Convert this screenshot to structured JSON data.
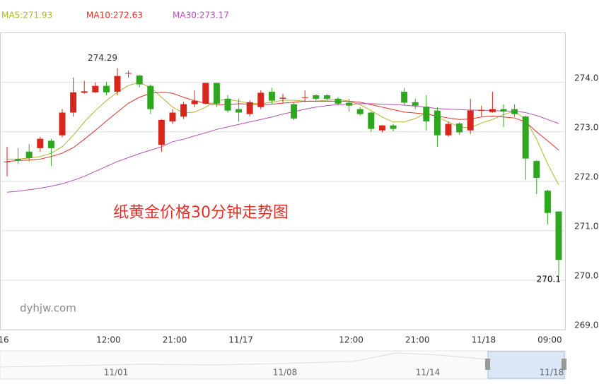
{
  "chart_data": {
    "type": "candlestick",
    "title": "纸黄金价格30分钟走势图",
    "watermark": "dyhjw.com",
    "categories": [
      "16",
      null,
      null,
      null,
      null,
      null,
      null,
      null,
      null,
      "12:00",
      null,
      null,
      null,
      null,
      null,
      "21:00",
      null,
      null,
      null,
      null,
      null,
      "11/17",
      null,
      null,
      null,
      null,
      null,
      null,
      null,
      null,
      null,
      "12:00",
      null,
      null,
      null,
      null,
      null,
      "21:00",
      null,
      null,
      null,
      null,
      null,
      "11/18",
      null,
      null,
      null,
      null,
      null,
      "09:00",
      null
    ],
    "open": [
      272.39,
      272.45,
      272.6,
      272.67,
      272.82,
      272.93,
      273.39,
      273.79,
      273.8,
      273.93,
      273.81,
      274.18,
      274.14,
      273.93,
      272.74,
      273.21,
      273.31,
      273.56,
      273.57,
      273.99,
      273.67,
      273.46,
      273.36,
      273.5,
      273.81,
      273.67,
      273.56,
      273.69,
      273.74,
      273.74,
      273.67,
      273.59,
      273.46,
      273.39,
      273.03,
      273.13,
      273.81,
      273.6,
      273.51,
      273.43,
      272.93,
      273.17,
      273.03,
      273.44,
      273.4,
      273.46,
      273.46,
      273.31,
      272.41,
      271.81,
      271.39
    ],
    "high": [
      272.7,
      272.67,
      272.75,
      272.9,
      272.86,
      273.46,
      274.1,
      274.03,
      274.0,
      274.01,
      274.29,
      274.24,
      274.15,
      273.96,
      273.26,
      273.46,
      273.61,
      273.84,
      273.99,
      273.99,
      273.74,
      273.67,
      273.64,
      273.84,
      273.89,
      273.77,
      273.6,
      273.84,
      273.76,
      273.76,
      273.7,
      273.67,
      273.5,
      273.41,
      273.14,
      273.16,
      273.89,
      273.67,
      273.74,
      273.5,
      273.21,
      273.19,
      273.67,
      273.53,
      273.81,
      273.56,
      273.56,
      273.33,
      272.43,
      271.83,
      271.39
    ],
    "low": [
      272.1,
      272.35,
      272.4,
      272.6,
      272.31,
      272.89,
      273.31,
      273.77,
      273.79,
      273.74,
      273.74,
      274.1,
      273.9,
      273.36,
      272.6,
      273.16,
      273.26,
      273.5,
      273.56,
      273.5,
      273.39,
      273.21,
      273.31,
      273.46,
      273.57,
      273.59,
      273.24,
      273.6,
      273.63,
      273.64,
      273.53,
      273.41,
      273.33,
      273.0,
      272.99,
      273.01,
      273.54,
      273.46,
      273.03,
      272.7,
      272.9,
      272.94,
      272.96,
      273.31,
      273.39,
      273.1,
      273.3,
      272.03,
      271.74,
      271.13,
      270.1
    ],
    "close": [
      272.4,
      272.42,
      272.47,
      272.86,
      272.67,
      273.39,
      273.8,
      273.82,
      273.93,
      273.8,
      274.13,
      274.19,
      273.96,
      273.46,
      273.24,
      273.39,
      273.56,
      273.63,
      273.99,
      273.57,
      273.43,
      273.39,
      273.6,
      273.79,
      273.63,
      273.69,
      273.27,
      273.7,
      273.67,
      273.67,
      273.57,
      273.53,
      273.36,
      273.06,
      273.13,
      273.06,
      273.59,
      273.53,
      273.21,
      272.93,
      273.16,
      272.99,
      273.43,
      273.44,
      273.46,
      273.41,
      273.36,
      272.46,
      272.07,
      271.36,
      270.41
    ],
    "up_color": "#d7261b",
    "down_color": "#2fa61f",
    "ma_series": [
      {
        "name": "MA5:271.93",
        "color": "#b3b32e",
        "values": [
          272.45,
          272.45,
          272.47,
          272.5,
          272.57,
          272.7,
          272.93,
          273.2,
          273.43,
          273.63,
          273.8,
          273.94,
          274.0,
          273.9,
          273.7,
          273.5,
          273.38,
          273.4,
          273.5,
          273.63,
          273.66,
          273.62,
          273.58,
          273.57,
          273.6,
          273.64,
          273.64,
          273.62,
          273.62,
          273.64,
          273.66,
          273.62,
          273.55,
          273.43,
          273.3,
          273.2,
          273.2,
          273.27,
          273.38,
          273.3,
          273.2,
          273.1,
          273.08,
          273.18,
          273.25,
          273.35,
          273.42,
          273.25,
          272.85,
          272.35,
          271.93
        ]
      },
      {
        "name": "MA10:272.63",
        "color": "#e0302a",
        "values": [
          272.4,
          272.42,
          272.43,
          272.45,
          272.5,
          272.57,
          272.68,
          272.85,
          273.03,
          273.22,
          273.4,
          273.58,
          273.7,
          273.78,
          273.8,
          273.78,
          273.7,
          273.63,
          273.58,
          273.55,
          273.55,
          273.57,
          273.56,
          273.55,
          273.56,
          273.58,
          273.6,
          273.62,
          273.62,
          273.62,
          273.62,
          273.62,
          273.6,
          273.55,
          273.5,
          273.45,
          273.4,
          273.38,
          273.36,
          273.32,
          273.28,
          273.25,
          273.26,
          273.3,
          273.32,
          273.3,
          273.28,
          273.2,
          273.0,
          272.82,
          272.63
        ]
      },
      {
        "name": "MA30:273.17",
        "color": "#b34fb3",
        "values": [
          271.78,
          271.8,
          271.83,
          271.86,
          271.9,
          271.95,
          272.02,
          272.1,
          272.2,
          272.3,
          272.4,
          272.48,
          272.56,
          272.63,
          272.7,
          272.8,
          272.85,
          272.92,
          272.98,
          273.05,
          273.1,
          273.15,
          273.2,
          273.25,
          273.3,
          273.36,
          273.41,
          273.46,
          273.5,
          273.53,
          273.55,
          273.56,
          273.57,
          273.57,
          273.56,
          273.55,
          273.54,
          273.52,
          273.5,
          273.47,
          273.46,
          273.45,
          273.44,
          273.44,
          273.43,
          273.42,
          273.42,
          273.39,
          273.33,
          273.25,
          273.17
        ]
      }
    ],
    "ylim": [
      269,
      275.01
    ],
    "yticks": [
      {
        "value": 269,
        "label": "269.00"
      },
      {
        "value": 270,
        "label": "270.00"
      },
      {
        "value": 271,
        "label": "271.00"
      },
      {
        "value": 272,
        "label": "272.00"
      },
      {
        "value": 273,
        "label": "273.00"
      },
      {
        "value": 274,
        "label": "274.00"
      }
    ],
    "grid": true,
    "navigator": {
      "labels": [
        "11/01",
        "11/08",
        "11/14",
        "11/18"
      ]
    }
  }
}
